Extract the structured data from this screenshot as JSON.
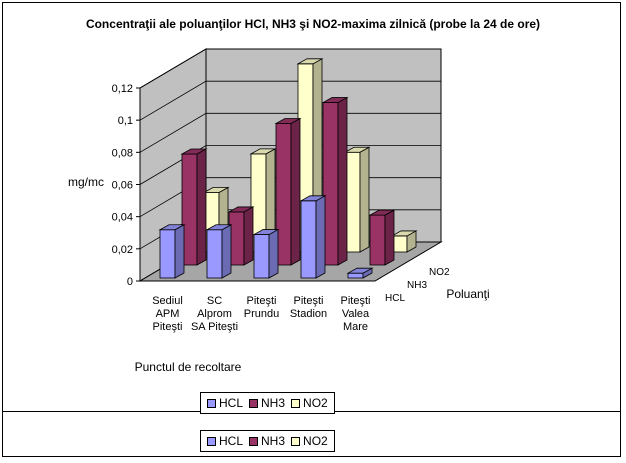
{
  "chart_data": {
    "type": "bar",
    "title": "Concentraţii ale poluanţilor HCl, NH3 şi NO2-maxima zilnică (probe la 24 de ore)",
    "ylabel": "mg/mc",
    "xlabel": "Punctul de recoltare",
    "zlabel": "Poluanţi",
    "ylim": [
      0,
      0.12
    ],
    "yticks": [
      "0",
      "0,02",
      "0,04",
      "0,06",
      "0,08",
      "0,1",
      "0,12"
    ],
    "categories": [
      [
        "Sediul",
        "APM",
        "Piteşti"
      ],
      [
        "SC",
        "Alprom",
        "SA Piteşti"
      ],
      [
        "Piteşti",
        "Prundu"
      ],
      [
        "Piteşti",
        "Stadion"
      ],
      [
        "Piteşti",
        "Valea",
        "Mare"
      ]
    ],
    "series": [
      {
        "name": "HCL",
        "color": "#9999FF",
        "values": [
          0.03,
          0.03,
          0.027,
          0.048,
          0.003
        ]
      },
      {
        "name": "NH3",
        "color": "#993366",
        "values": [
          0.069,
          0.033,
          0.088,
          0.101,
          0.031
        ]
      },
      {
        "name": "NO2",
        "color": "#FFFFCC",
        "values": [
          0.037,
          0.061,
          0.117,
          0.062,
          0.01
        ]
      }
    ],
    "grid": true,
    "legend_position": "bottom"
  }
}
